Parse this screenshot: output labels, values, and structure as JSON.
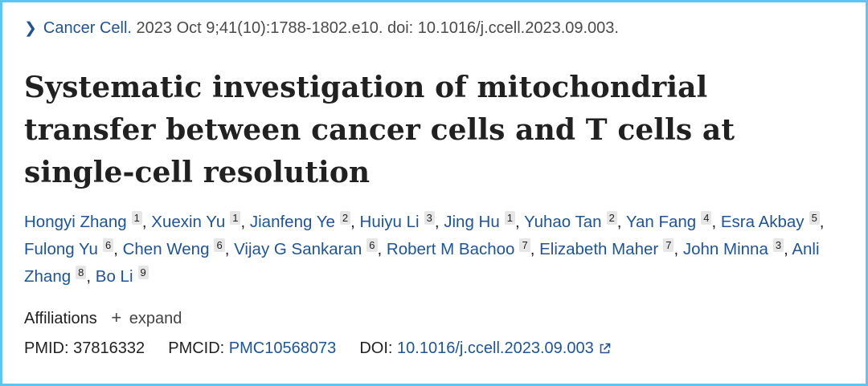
{
  "citation": {
    "journal": "Cancer Cell.",
    "details": "2023 Oct 9;41(10):1788-1802.e10. doi: 10.1016/j.ccell.2023.09.003."
  },
  "title": "Systematic investigation of mitochondrial transfer between cancer cells and T cells at single-cell resolution",
  "authors": [
    {
      "name": "Hongyi Zhang",
      "aff": "1"
    },
    {
      "name": "Xuexin Yu",
      "aff": "1"
    },
    {
      "name": "Jianfeng Ye",
      "aff": "2"
    },
    {
      "name": "Huiyu Li",
      "aff": "3"
    },
    {
      "name": "Jing Hu",
      "aff": "1"
    },
    {
      "name": "Yuhao Tan",
      "aff": "2"
    },
    {
      "name": "Yan Fang",
      "aff": "4"
    },
    {
      "name": "Esra Akbay",
      "aff": "5"
    },
    {
      "name": "Fulong Yu",
      "aff": "6"
    },
    {
      "name": "Chen Weng",
      "aff": "6"
    },
    {
      "name": "Vijay G Sankaran",
      "aff": "6"
    },
    {
      "name": "Robert M Bachoo",
      "aff": "7"
    },
    {
      "name": "Elizabeth Maher",
      "aff": "7"
    },
    {
      "name": "John Minna",
      "aff": "3"
    },
    {
      "name": "Anli Zhang",
      "aff": "8"
    },
    {
      "name": "Bo Li",
      "aff": "9"
    }
  ],
  "affiliations": {
    "label": "Affiliations",
    "toggle_symbol": "+",
    "toggle_label": "expand"
  },
  "identifiers": {
    "pmid_label": "PMID:",
    "pmid": "37816332",
    "pmcid_label": "PMCID:",
    "pmcid": "PMC10568073",
    "doi_label": "DOI:",
    "doi": "10.1016/j.ccell.2023.09.003"
  },
  "icons": {
    "breadcrumb": "chevron-right-icon",
    "doi_link": "external-link-icon"
  },
  "colors": {
    "link": "#205493",
    "frame_border": "#5fc4ef",
    "badge_bg": "#e6e6e6"
  }
}
